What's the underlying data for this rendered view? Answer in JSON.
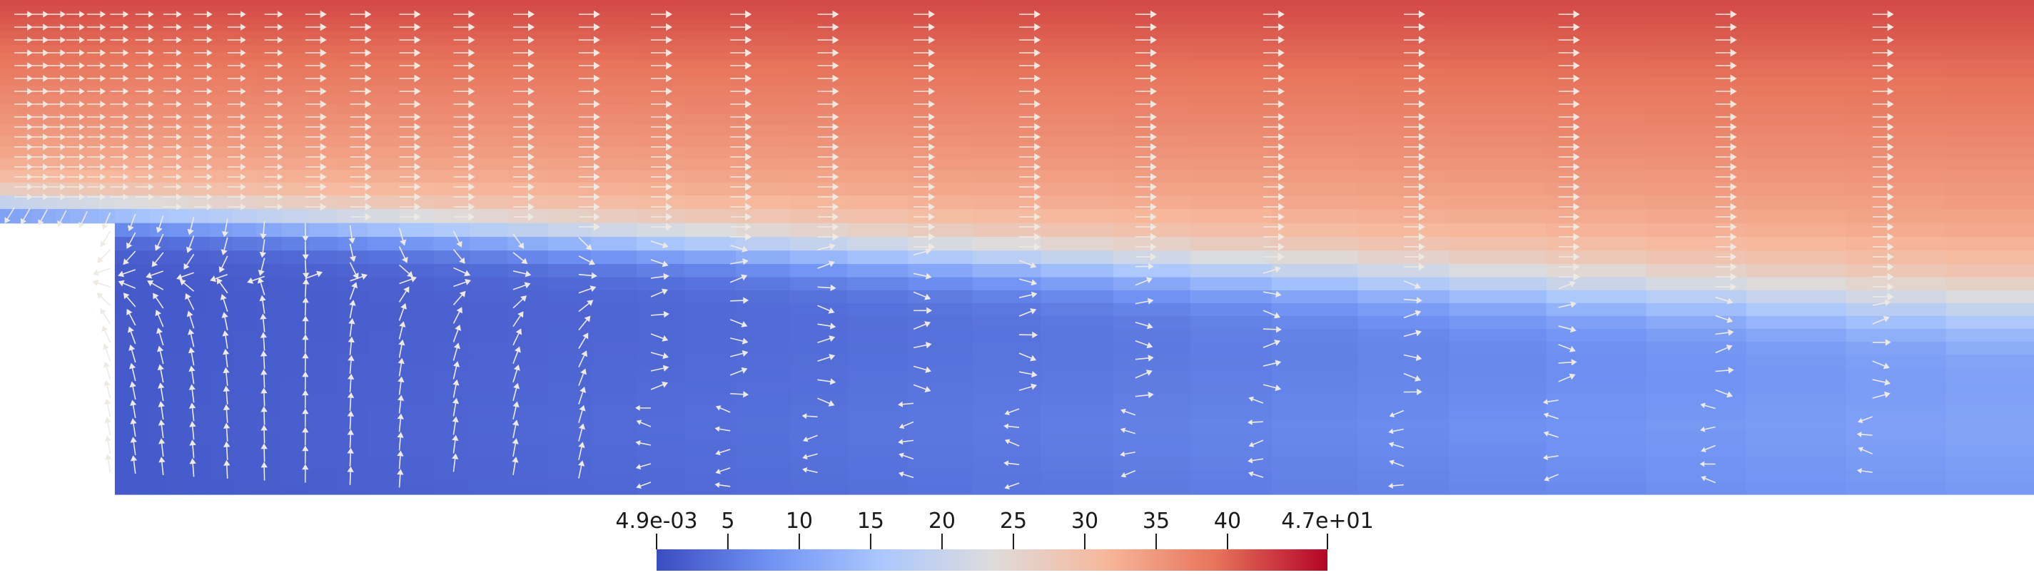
{
  "colors": {
    "background": "#ffffff",
    "colormap": [
      "#3b4cc0",
      "#6f92f3",
      "#aac7fd",
      "#dddcdc",
      "#f7b89c",
      "#e7745b",
      "#b40426"
    ],
    "glyph": "#eeeae2"
  },
  "visualization": {
    "type": "vector-field-over-scalar-field",
    "geometry": "backward-facing step",
    "glyph_icon": "arrow-glyph-icon"
  },
  "color_legend": {
    "min_label": "4.9e-03",
    "max_label": "4.7e+01",
    "range": [
      0.0049,
      47
    ],
    "ticks": [
      {
        "value": 0.0049,
        "label": "4.9e-03"
      },
      {
        "value": 5,
        "label": "5"
      },
      {
        "value": 10,
        "label": "10"
      },
      {
        "value": 15,
        "label": "15"
      },
      {
        "value": 20,
        "label": "20"
      },
      {
        "value": 25,
        "label": "25"
      },
      {
        "value": 30,
        "label": "30"
      },
      {
        "value": 35,
        "label": "35"
      },
      {
        "value": 40,
        "label": "40"
      },
      {
        "value": 47,
        "label": "4.7e+01"
      }
    ]
  }
}
